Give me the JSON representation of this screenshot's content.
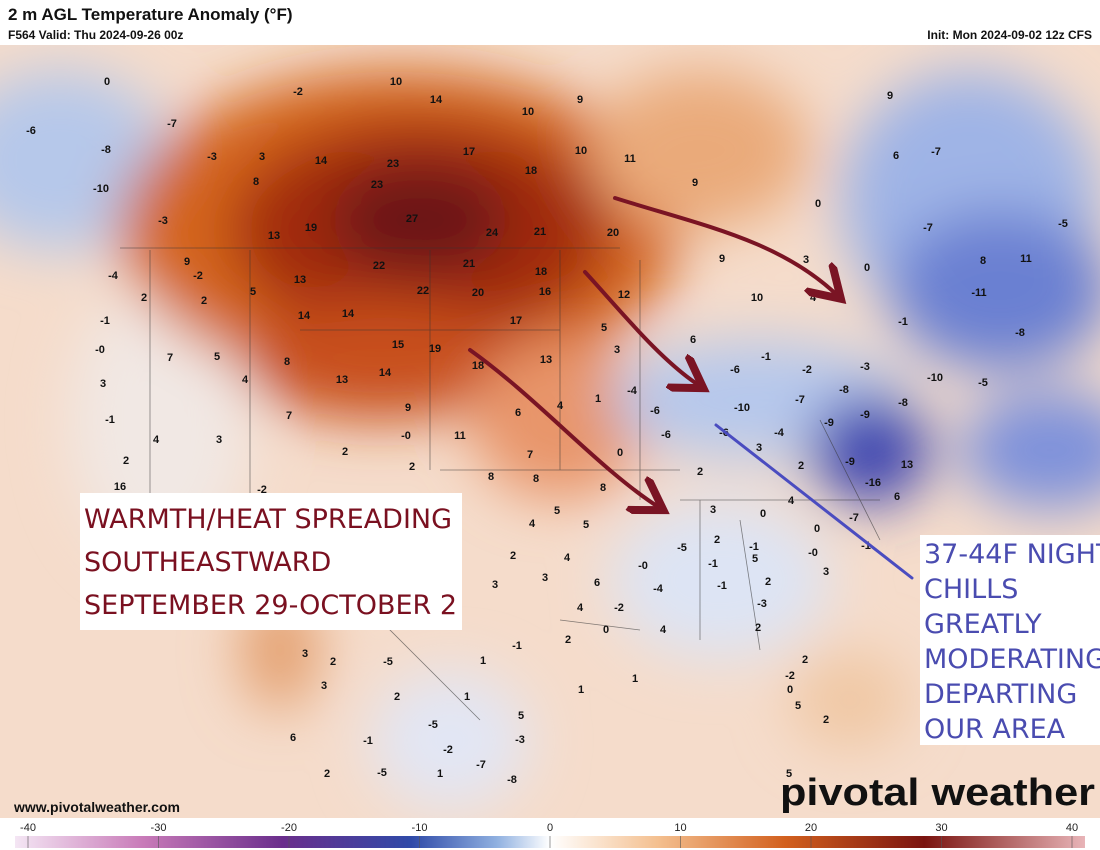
{
  "header": {
    "title": "2 m AGL Temperature Anomaly (°F)",
    "valid": "F564 Valid: Thu 2024-09-26 00z",
    "init": "Init: Mon 2024-09-02 12z CFS"
  },
  "map": {
    "anomaly_labels": [
      "0",
      "-2",
      "10",
      "14",
      "10",
      "9",
      "9",
      "-6",
      "-7",
      "-8",
      "-3",
      "3",
      "14",
      "17",
      "10",
      "11",
      "6",
      "-7",
      "-10",
      "8",
      "23",
      "23",
      "18",
      "9",
      "-3",
      "13",
      "19",
      "27",
      "24",
      "21",
      "20",
      "0",
      "-7",
      "-5",
      "-4",
      "-2",
      "9",
      "22",
      "21",
      "18",
      "9",
      "3",
      "0",
      "8",
      "11",
      "2",
      "2",
      "5",
      "13",
      "22",
      "20",
      "16",
      "12",
      "10",
      "4",
      "-11",
      "-1",
      "14",
      "14",
      "17",
      "5",
      "-1",
      "-0",
      "7",
      "5",
      "8",
      "15",
      "19",
      "3",
      "6",
      "-8",
      "3",
      "4",
      "13",
      "14",
      "18",
      "13",
      "-1",
      "-6",
      "-2",
      "-3",
      "-10",
      "-5",
      "-1",
      "7",
      "9",
      "6",
      "4",
      "1",
      "-4",
      "-6",
      "-10",
      "-7",
      "-8",
      "-8",
      "4",
      "3",
      "2",
      "-0",
      "11",
      "0",
      "-6",
      "-6",
      "-4",
      "-9",
      "-9",
      "2",
      "2",
      "7",
      "8",
      "8",
      "8",
      "2",
      "3",
      "2",
      "-9",
      "13",
      "-16",
      "16",
      "-2",
      "4",
      "5",
      "5",
      "3",
      "0",
      "4",
      "-7",
      "6",
      "2",
      "4",
      "-5",
      "2",
      "-1",
      "0",
      "3",
      "3",
      "6",
      "-0",
      "-1",
      "5",
      "-0",
      "-1",
      "4",
      "-2",
      "-4",
      "-1",
      "2",
      "3",
      "0",
      "-3",
      "4",
      "2",
      "-1",
      "2",
      "3",
      "2",
      "1",
      "-5",
      "3",
      "1",
      "1",
      "2",
      "-2",
      "0",
      "2",
      "1",
      "5",
      "6",
      "-5",
      "5",
      "-1",
      "-3",
      "2",
      "-2",
      "-7",
      "1",
      "-5",
      "-8",
      "2",
      "5"
    ]
  },
  "annotations": {
    "warm": [
      "WARMTH/HEAT SPREADING",
      "SOUTHEASTWARD",
      "SEPTEMBER 29-OCTOBER 2"
    ],
    "cool": [
      "37-44F NIGHT",
      "CHILLS",
      "GREATLY",
      "MODERATING &",
      "DEPARTING",
      "OUR AREA"
    ]
  },
  "footer": {
    "website": "www.pivotalweather.com",
    "brand": "pivotal weather"
  },
  "colorbar": {
    "ticks": [
      -40,
      -30,
      -20,
      -10,
      0,
      10,
      20,
      30,
      40
    ]
  }
}
